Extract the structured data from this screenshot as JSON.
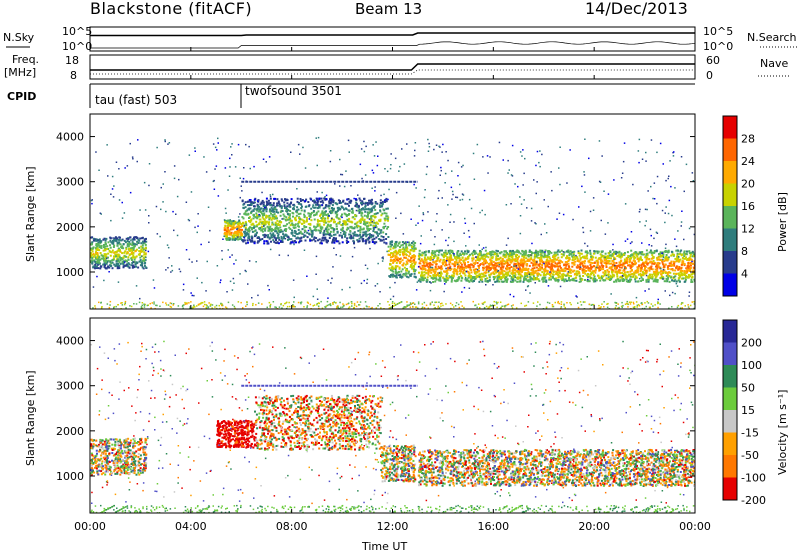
{
  "header": {
    "station": "Blackstone (fitACF)",
    "beam": "Beam 13",
    "date": "14/Dec/2013"
  },
  "strips": {
    "nsky_label": "N.Sky",
    "nsky_ticks": [
      "10^5",
      "10^0"
    ],
    "nsearch_label": "N.Search",
    "nsearch_ticks": [
      "10^5",
      "10^0"
    ],
    "freq_label_line1": "Freq.",
    "freq_label_line2": "[MHz]",
    "freq_ticks": [
      "18",
      "8"
    ],
    "nave_label": "Nave",
    "nave_ticks": [
      "60",
      "0"
    ],
    "cpid_label": "CPID",
    "cpid_segments": [
      {
        "name": "tau (fast) 503",
        "start": "00:00",
        "end": "06:00"
      },
      {
        "name": "twofsound 3501",
        "start": "06:00",
        "end": "24:00"
      }
    ]
  },
  "axes": {
    "x_ticks": [
      "00:00",
      "04:00",
      "08:00",
      "12:00",
      "16:00",
      "20:00",
      "00:00"
    ],
    "x_label": "Time UT",
    "y_ticks": [
      "1000",
      "2000",
      "3000",
      "4000"
    ],
    "y_label": "Slant Range [km]"
  },
  "power_scale": {
    "label": "Power [dB]",
    "ticks": [
      "28",
      "24",
      "20",
      "16",
      "12",
      "8",
      "4"
    ],
    "colors": [
      "#e60000",
      "#ff6600",
      "#ffaa00",
      "#c8d200",
      "#5ab45a",
      "#2f7d7d",
      "#283c8c",
      "#0000e6"
    ]
  },
  "velocity_scale": {
    "label": "Velocity [m s⁻¹]",
    "ticks": [
      "200",
      "100",
      "50",
      "15",
      "-15",
      "-50",
      "-100",
      "-200"
    ],
    "colors": [
      "#282896",
      "#5050c8",
      "#2e8b57",
      "#6ccc3c",
      "#c8c8c8",
      "#ffa000",
      "#ff7800",
      "#e60000"
    ]
  },
  "chart_data": [
    {
      "type": "heatmap",
      "title": "Power",
      "xlabel": "Time UT",
      "ylabel": "Slant Range [km]",
      "xlim": [
        0,
        24
      ],
      "ylim": [
        180,
        4500
      ],
      "colorbar": {
        "label": "Power [dB]",
        "range": [
          0,
          32
        ]
      },
      "features": [
        {
          "t_start": 0.0,
          "t_end": 2.2,
          "range_center": 1450,
          "width": 350,
          "value_db": 22
        },
        {
          "t_start": 5.3,
          "t_end": 6.0,
          "range_center": 1950,
          "width": 220,
          "value_db": 28
        },
        {
          "t_start": 6.0,
          "t_end": 11.8,
          "range_center": 2150,
          "width": 500,
          "value_db": 20
        },
        {
          "t_start": 11.8,
          "t_end": 12.9,
          "range_center": 1300,
          "width": 400,
          "value_db": 26
        },
        {
          "t_start": 13.0,
          "t_end": 24.0,
          "range_center": 1150,
          "width": 350,
          "value_db": 28
        }
      ]
    },
    {
      "type": "heatmap",
      "title": "Velocity",
      "xlabel": "Time UT",
      "ylabel": "Slant Range [km]",
      "xlim": [
        0,
        24
      ],
      "ylim": [
        180,
        4500
      ],
      "colorbar": {
        "label": "Velocity [m s⁻¹]",
        "range": [
          -250,
          250
        ]
      },
      "features": [
        {
          "t_start": 0.0,
          "t_end": 2.2,
          "range_center": 1450,
          "width": 400,
          "velocity": 0
        },
        {
          "t_start": 5.0,
          "t_end": 6.5,
          "range_center": 1950,
          "width": 300,
          "velocity": -200
        },
        {
          "t_start": 6.5,
          "t_end": 11.5,
          "range_center": 2200,
          "width": 600,
          "velocity": -40
        },
        {
          "t_start": 11.5,
          "t_end": 12.9,
          "range_center": 1300,
          "width": 400,
          "velocity": 0
        },
        {
          "t_start": 13.0,
          "t_end": 24.0,
          "range_center": 1200,
          "width": 400,
          "velocity": 0
        }
      ]
    }
  ]
}
